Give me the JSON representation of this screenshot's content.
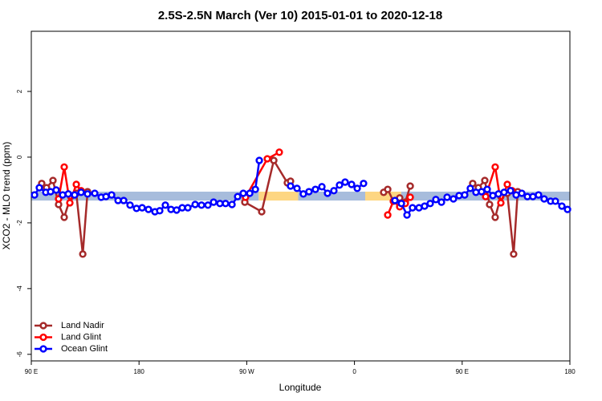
{
  "chart_data": {
    "type": "line",
    "title": "2.5S-2.5N March (Ver 10)   2015-01-01 to 2020-12-18",
    "x_label": "Longitude",
    "y_label": "XCO2 - MLO trend (ppm)",
    "xlim": [
      90,
      540
    ],
    "ylim": [
      -6.2,
      3.83
    ],
    "xticks": [
      {
        "value": 90,
        "label": "90 E"
      },
      {
        "value": 180,
        "label": "180"
      },
      {
        "value": 270,
        "label": "90 W"
      },
      {
        "value": 360,
        "label": "0"
      },
      {
        "value": 450,
        "label": "90 E"
      },
      {
        "value": 540,
        "label": "180"
      }
    ],
    "yticks": [
      -6,
      -4,
      -2,
      0,
      2
    ],
    "legend": "bottom-left",
    "band": {
      "ylim": [
        -1.32,
        -1.05
      ],
      "segments": [
        {
          "x": [
            90,
            280
          ],
          "color": "#a7bcdc"
        },
        {
          "x": [
            280,
            313
          ],
          "color": "#fdd682"
        },
        {
          "x": [
            313,
            369
          ],
          "color": "#a7bcdc"
        },
        {
          "x": [
            369,
            399
          ],
          "color": "#fdd682"
        },
        {
          "x": [
            399,
            540
          ],
          "color": "#a7bcdc"
        }
      ]
    },
    "series": [
      {
        "name": "Land Nadir",
        "color": "#a52a2a",
        "x": [
          98.7,
          102.7,
          108.1,
          112.8,
          117.5,
          122.9,
          127.6,
          133,
          137,
          null,
          268.4,
          282.5,
          292.6,
          303.9,
          306.6,
          null,
          384.4,
          387.8,
          392.5,
          397.8,
          402.5,
          406.6,
          null,
          458.8,
          463.5,
          468.9,
          472.9,
          477.6,
          482.3,
          487.7,
          493,
          496.4
        ],
        "values": [
          -0.8,
          -0.93,
          -0.71,
          -1.44,
          -1.83,
          -1.2,
          -1.1,
          -2.95,
          -1.05,
          null,
          -1.37,
          -1.66,
          -0.1,
          -0.78,
          -0.73,
          null,
          -1.07,
          -0.98,
          -1.34,
          -1.24,
          -1.37,
          -0.88,
          null,
          -0.8,
          -0.93,
          -0.71,
          -1.44,
          -1.83,
          -1.2,
          -1.1,
          -2.95,
          -1.05
        ]
      },
      {
        "name": "Land Glint",
        "color": "#ff0000",
        "x": [
          112.8,
          117.5,
          122.2,
          127.6,
          131.6,
          null,
          269,
          287.2,
          297.2,
          null,
          387.8,
          392.5,
          397.8,
          402.5,
          406.6,
          null,
          469.6,
          477.6,
          482.3,
          487.7,
          491.7
        ],
        "values": [
          -1.27,
          -0.3,
          -1.39,
          -0.83,
          -1.02,
          null,
          -1.22,
          -0.05,
          0.15,
          null,
          -1.76,
          -1.34,
          -1.51,
          -1.41,
          -1.22,
          null,
          -1.2,
          -0.3,
          -1.39,
          -0.83,
          -1.02
        ]
      },
      {
        "name": "Ocean Glint",
        "color": "#0000ff",
        "x": [
          92.7,
          96.7,
          102.1,
          106.1,
          110.8,
          116.2,
          120.9,
          126.2,
          131.6,
          137,
          143,
          148.4,
          152.4,
          157.1,
          162.5,
          167.2,
          172.5,
          177.9,
          182.6,
          187.9,
          193.3,
          197.3,
          202,
          206.7,
          211.4,
          216.1,
          220.8,
          226.9,
          232.2,
          237.6,
          242.3,
          247.6,
          252.3,
          257.7,
          262.4,
          267.1,
          272.5,
          277.2,
          280.5,
          null,
          306.6,
          312,
          317.3,
          322,
          327.4,
          332.8,
          337.5,
          342.8,
          347.5,
          352.2,
          357.6,
          362.3,
          367.6,
          null,
          393.8,
          399.2,
          403.9,
          408.5,
          413.9,
          418.6,
          423.3,
          428,
          432.7,
          437.4,
          442.7,
          447.4,
          452.1,
          456.8,
          461.5,
          466.2,
          470.9,
          475.6,
          480.3,
          485,
          490.4,
          495.1,
          499.8,
          504.5,
          509.1,
          513.8,
          518.5,
          523.9,
          527.9,
          533.3,
          538
        ],
        "values": [
          -1.15,
          -0.93,
          -1.07,
          -1.05,
          -1.0,
          -1.15,
          -1.12,
          -1.15,
          -1.07,
          -1.12,
          -1.1,
          -1.22,
          -1.2,
          -1.15,
          -1.32,
          -1.32,
          -1.46,
          -1.56,
          -1.54,
          -1.59,
          -1.66,
          -1.63,
          -1.46,
          -1.59,
          -1.61,
          -1.54,
          -1.54,
          -1.44,
          -1.46,
          -1.46,
          -1.37,
          -1.41,
          -1.41,
          -1.44,
          -1.2,
          -1.1,
          -1.1,
          -0.98,
          -0.1,
          null,
          -0.88,
          -0.95,
          -1.12,
          -1.05,
          -0.98,
          -0.9,
          -1.1,
          -1.02,
          -0.85,
          -0.76,
          -0.83,
          -0.95,
          -0.8,
          null,
          -1.32,
          -1.41,
          -1.76,
          -1.54,
          -1.54,
          -1.49,
          -1.41,
          -1.29,
          -1.37,
          -1.22,
          -1.27,
          -1.17,
          -1.15,
          -0.95,
          -1.07,
          -1.05,
          -0.98,
          -1.17,
          -1.12,
          -1.07,
          -1.02,
          -1.15,
          -1.1,
          -1.2,
          -1.2,
          -1.15,
          -1.27,
          -1.34,
          -1.34,
          -1.49,
          -1.59
        ]
      }
    ]
  }
}
